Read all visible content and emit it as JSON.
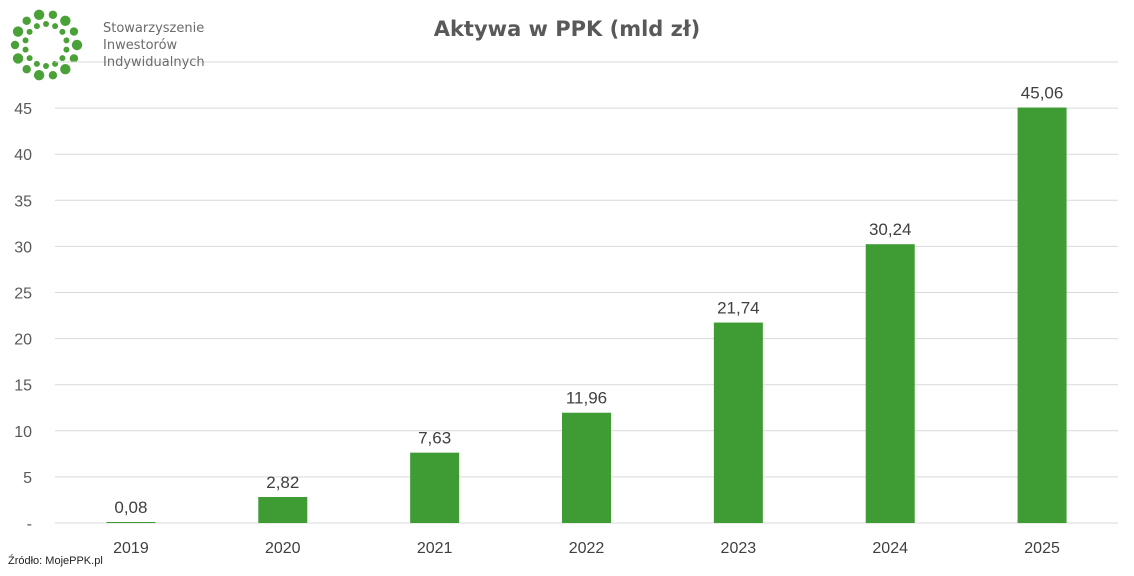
{
  "organization": {
    "name_lines": [
      "Stowarzyszenie",
      "Inwestorów",
      "Indywidualnych"
    ],
    "logo_icon": "dotted-ring-logo-icon",
    "logo_color": "#4aa138"
  },
  "source_note": "Źródło: MojePPK.pl",
  "chart_data": {
    "type": "bar",
    "title": "Aktywa w PPK (mld zł)",
    "xlabel": "",
    "ylabel": "",
    "categories": [
      "2019",
      "2020",
      "2021",
      "2022",
      "2023",
      "2024",
      "2025"
    ],
    "values": [
      0.08,
      2.82,
      7.63,
      11.96,
      21.74,
      30.24,
      45.06
    ],
    "value_labels": [
      "0,08",
      "2,82",
      "7,63",
      "11,96",
      "21,74",
      "30,24",
      "45,06"
    ],
    "ylim": [
      0,
      50
    ],
    "yticks": [
      0,
      5,
      10,
      15,
      20,
      25,
      30,
      35,
      40,
      45
    ],
    "ytick_labels": [
      "-",
      "5",
      "10",
      "15",
      "20",
      "25",
      "30",
      "35",
      "40",
      "45"
    ],
    "grid": true,
    "legend": "none",
    "bar_color": "#3f9c35",
    "grid_color": "#d9d9d9",
    "title_color": "#595959"
  }
}
